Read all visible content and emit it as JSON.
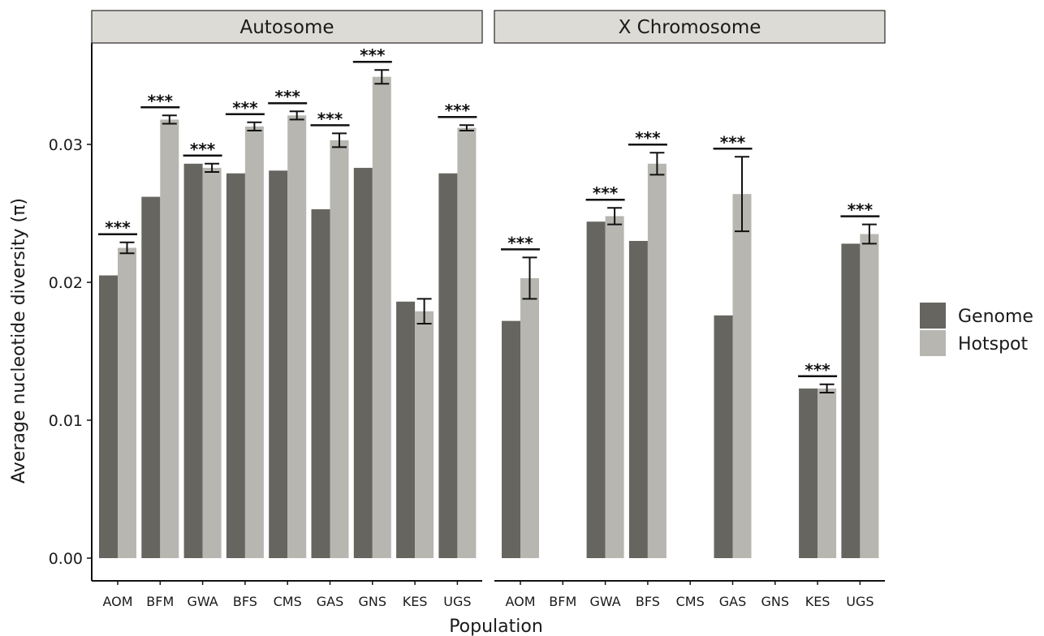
{
  "chart_data": {
    "type": "bar",
    "xlabel": "Population",
    "ylabel": "Average nucleotide diversity (π)",
    "ylim": [
      0,
      0.0375
    ],
    "yticks": [
      "0.00",
      "0.01",
      "0.02",
      "0.03"
    ],
    "ytick_values": [
      0,
      0.01,
      0.02,
      0.03
    ],
    "categories": [
      "AOM",
      "BFM",
      "GWA",
      "BFS",
      "CMS",
      "GAS",
      "GNS",
      "KES",
      "UGS"
    ],
    "legend": {
      "position": "right",
      "entries": [
        {
          "name": "Genome",
          "color": "#666560"
        },
        {
          "name": "Hotspot",
          "color": "#b7b6b0"
        }
      ]
    },
    "significance_label": "***",
    "panels": [
      {
        "title": "Autosome",
        "series": [
          {
            "name": "Genome",
            "values": [
              0.0205,
              0.0262,
              0.0286,
              0.0279,
              0.0281,
              0.0253,
              0.0283,
              0.0186,
              0.0279
            ]
          },
          {
            "name": "Hotspot",
            "values": [
              0.0225,
              0.0318,
              0.0283,
              0.0313,
              0.0321,
              0.0303,
              0.0349,
              0.0179,
              0.0312
            ],
            "err": [
              0.0004,
              0.0003,
              0.0003,
              0.0003,
              0.0003,
              0.0005,
              0.0005,
              0.0009,
              0.0002
            ]
          }
        ],
        "significant": [
          true,
          true,
          true,
          true,
          true,
          true,
          true,
          false,
          true
        ]
      },
      {
        "title": "X Chromosome",
        "series": [
          {
            "name": "Genome",
            "values": [
              0.0172,
              null,
              0.0244,
              0.023,
              null,
              0.0176,
              null,
              0.0123,
              0.0228
            ]
          },
          {
            "name": "Hotspot",
            "values": [
              0.0203,
              null,
              0.0248,
              0.0286,
              null,
              0.0264,
              null,
              0.0123,
              0.0235
            ],
            "err": [
              0.0015,
              null,
              0.0006,
              0.0008,
              null,
              0.0027,
              null,
              0.0003,
              0.0007
            ]
          }
        ],
        "significant": [
          true,
          false,
          true,
          true,
          false,
          true,
          false,
          true,
          true
        ]
      }
    ]
  }
}
